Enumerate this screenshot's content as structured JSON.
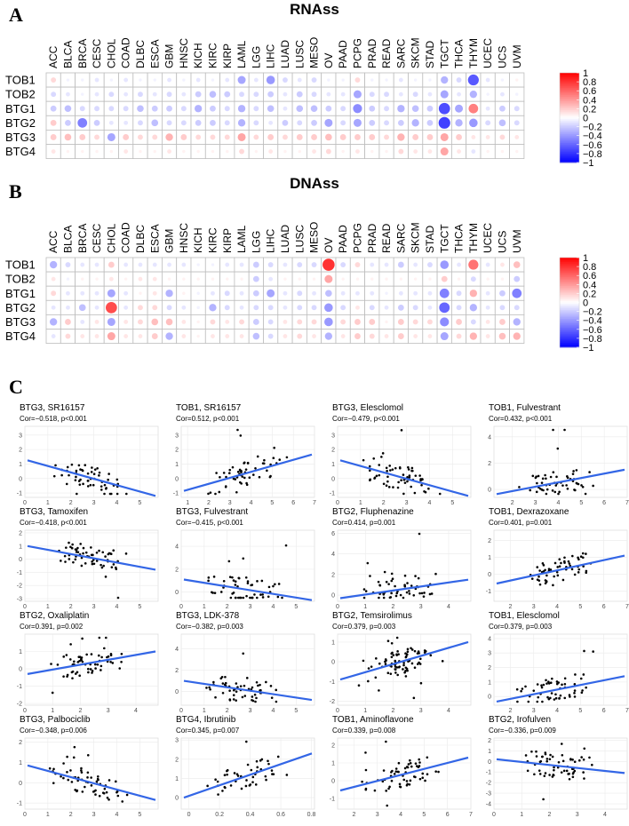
{
  "panels": {
    "A": {
      "letter": "A",
      "title": "RNAss"
    },
    "B": {
      "letter": "B",
      "title": "DNAss"
    },
    "C": {
      "letter": "C"
    }
  },
  "colorbar": {
    "labels": [
      "1",
      "0.8",
      "0.6",
      "0.4",
      "0.2",
      "0",
      "−0.2",
      "−0.4",
      "−0.6",
      "−0.8",
      "−1"
    ]
  },
  "chart_data": [
    {
      "type": "heatmap",
      "title": "RNAss",
      "columns": [
        "ACC",
        "BLCA",
        "BRCA",
        "CESC",
        "CHOL",
        "COAD",
        "DLBC",
        "ESCA",
        "GBM",
        "HNSC",
        "KICH",
        "KIRC",
        "KIRP",
        "LAML",
        "LGG",
        "LIHC",
        "LUAD",
        "LUSC",
        "MESO",
        "OV",
        "PAAD",
        "PCPG",
        "PRAD",
        "READ",
        "SARC",
        "SKCM",
        "STAD",
        "TGCT",
        "THCA",
        "THYM",
        "UCEC",
        "UCS",
        "UVM"
      ],
      "rows": [
        "TOB1",
        "TOB2",
        "BTG1",
        "BTG2",
        "BTG3",
        "BTG4"
      ],
      "values": [
        [
          0.15,
          -0.05,
          -0.05,
          -0.1,
          -0.05,
          -0.1,
          -0.05,
          -0.05,
          -0.1,
          -0.05,
          -0.1,
          -0.05,
          -0.1,
          -0.35,
          -0.1,
          -0.4,
          -0.15,
          -0.1,
          -0.15,
          -0.05,
          -0.05,
          0.15,
          -0.05,
          -0.05,
          -0.1,
          -0.05,
          -0.05,
          -0.3,
          -0.15,
          -0.65,
          -0.1,
          -0.05,
          0.05
        ],
        [
          -0.15,
          -0.1,
          -0.05,
          -0.1,
          -0.15,
          -0.1,
          -0.15,
          -0.1,
          -0.15,
          -0.1,
          -0.2,
          -0.25,
          -0.2,
          -0.15,
          -0.15,
          -0.2,
          -0.1,
          -0.2,
          -0.15,
          -0.1,
          -0.1,
          -0.35,
          -0.15,
          -0.15,
          -0.1,
          -0.15,
          -0.1,
          -0.35,
          -0.1,
          -0.3,
          -0.05,
          -0.1,
          -0.05
        ],
        [
          -0.2,
          -0.25,
          -0.15,
          -0.15,
          -0.15,
          -0.15,
          -0.25,
          -0.2,
          -0.2,
          -0.15,
          -0.3,
          -0.2,
          -0.15,
          -0.3,
          -0.15,
          -0.25,
          -0.1,
          -0.25,
          -0.25,
          -0.2,
          -0.15,
          -0.45,
          -0.2,
          -0.15,
          -0.3,
          -0.25,
          -0.2,
          -0.7,
          -0.35,
          0.5,
          -0.1,
          -0.2,
          -0.15
        ],
        [
          0.2,
          -0.2,
          -0.5,
          -0.2,
          -0.1,
          -0.1,
          -0.15,
          -0.25,
          -0.15,
          -0.15,
          -0.2,
          -0.2,
          -0.15,
          -0.3,
          -0.15,
          -0.1,
          -0.2,
          -0.15,
          -0.2,
          -0.35,
          -0.15,
          -0.35,
          -0.2,
          -0.15,
          -0.2,
          -0.3,
          -0.2,
          -0.75,
          -0.3,
          -0.4,
          -0.15,
          -0.25,
          -0.15
        ],
        [
          0.2,
          0.25,
          0.2,
          0.15,
          -0.35,
          0.2,
          0.15,
          0.15,
          0.3,
          0.2,
          0.15,
          0.15,
          0.15,
          0.35,
          0.15,
          0.2,
          0.15,
          0.2,
          0.2,
          0.25,
          0.2,
          0.2,
          0.2,
          0.15,
          0.3,
          0.2,
          0.2,
          0.35,
          0.2,
          0.1,
          0.1,
          0.15,
          0.1
        ],
        [
          0.1,
          0.05,
          0.05,
          0.05,
          0.05,
          0.1,
          0.05,
          0.05,
          0.1,
          0.05,
          0.05,
          0.05,
          0.05,
          0.15,
          0.05,
          0.1,
          0.05,
          0.05,
          0.1,
          0.15,
          0.05,
          0.1,
          0.05,
          0.05,
          0.15,
          0.1,
          0.1,
          0.35,
          0.1,
          -0.1,
          0.05,
          0.05,
          0.05
        ]
      ],
      "range": [
        -1,
        1
      ]
    },
    {
      "type": "heatmap",
      "title": "DNAss",
      "columns": [
        "ACC",
        "BLCA",
        "BRCA",
        "CESC",
        "CHOL",
        "COAD",
        "DLBC",
        "ESCA",
        "GBM",
        "HNSC",
        "KICH",
        "KIRC",
        "KIRP",
        "LAML",
        "LGG",
        "LIHC",
        "LUAD",
        "LUSC",
        "MESO",
        "OV",
        "PAAD",
        "PCPG",
        "PRAD",
        "READ",
        "SARC",
        "SKCM",
        "STAD",
        "TGCT",
        "THCA",
        "THYM",
        "UCEC",
        "UCS",
        "UVM"
      ],
      "rows": [
        "TOB1",
        "TOB2",
        "BTG1",
        "BTG2",
        "BTG3",
        "BTG4"
      ],
      "values": [
        [
          -0.3,
          -0.15,
          -0.1,
          -0.1,
          0.2,
          -0.1,
          -0.1,
          -0.1,
          -0.1,
          -0.1,
          -0.05,
          -0.05,
          -0.1,
          -0.1,
          -0.2,
          -0.15,
          -0.1,
          -0.15,
          -0.15,
          0.8,
          -0.15,
          0.15,
          -0.1,
          -0.1,
          -0.2,
          -0.1,
          -0.15,
          -0.4,
          -0.1,
          0.55,
          -0.1,
          0.1,
          0.25
        ],
        [
          0.1,
          -0.05,
          0.05,
          0.05,
          0.1,
          0.05,
          0.1,
          0.1,
          0.05,
          0.05,
          0.05,
          0.05,
          0.05,
          0.05,
          -0.2,
          -0.1,
          0.05,
          0.05,
          0.05,
          0.35,
          0.05,
          0.05,
          0.05,
          0.05,
          0.05,
          0.05,
          0.05,
          0.2,
          0.05,
          -0.15,
          0.05,
          0.05,
          -0.2
        ],
        [
          0.15,
          -0.1,
          -0.1,
          -0.1,
          -0.35,
          -0.1,
          0.05,
          0.1,
          -0.3,
          0.05,
          -0.05,
          -0.1,
          -0.15,
          -0.1,
          -0.2,
          -0.35,
          -0.1,
          -0.15,
          -0.1,
          -0.25,
          -0.1,
          -0.1,
          -0.1,
          -0.05,
          -0.1,
          -0.1,
          -0.1,
          -0.5,
          -0.15,
          0.3,
          -0.1,
          -0.2,
          -0.5
        ],
        [
          -0.1,
          -0.1,
          -0.25,
          -0.1,
          0.7,
          -0.1,
          0.15,
          0.15,
          -0.15,
          -0.1,
          -0.05,
          -0.3,
          -0.15,
          -0.1,
          -0.15,
          -0.15,
          -0.1,
          -0.15,
          -0.15,
          -0.4,
          -0.15,
          0.1,
          -0.15,
          -0.1,
          -0.2,
          -0.15,
          -0.1,
          -0.6,
          -0.15,
          -0.3,
          -0.1,
          -0.15,
          -0.15
        ],
        [
          -0.3,
          0.2,
          -0.1,
          0.1,
          -0.35,
          0.1,
          0.15,
          0.25,
          0.25,
          0.1,
          0.05,
          0.15,
          0.1,
          0.15,
          -0.2,
          -0.15,
          0.1,
          0.15,
          0.15,
          -0.4,
          0.15,
          0.2,
          0.2,
          0.05,
          0.2,
          0.15,
          0.15,
          -0.45,
          0.2,
          -0.15,
          0.1,
          0.2,
          -0.3
        ],
        [
          -0.1,
          0.15,
          0.1,
          0.1,
          0.35,
          0.1,
          0.1,
          0.2,
          -0.3,
          0.1,
          0.05,
          0.1,
          0.1,
          0.1,
          -0.25,
          -0.15,
          0.1,
          0.15,
          0.1,
          -0.3,
          0.1,
          0.2,
          0.15,
          0.1,
          0.2,
          0.1,
          0.1,
          -0.35,
          0.15,
          0.3,
          0.1,
          0.25,
          0.3
        ]
      ],
      "range": [
        -1,
        1
      ]
    },
    {
      "type": "scatter",
      "panels": [
        {
          "title": "BTG3, SR16157",
          "subtitle": "Cor=−0.518, p<0.001",
          "xlim": [
            0,
            5.8
          ],
          "ylim": [
            -1.3,
            3.6
          ],
          "xticks": [
            0,
            1,
            2,
            3,
            4,
            5
          ],
          "yticks": [
            -1,
            0,
            1,
            2,
            3
          ],
          "n": 55,
          "line": [
            1.25,
            -1.2
          ],
          "seed": 1
        },
        {
          "title": "TOB1, SR16157",
          "subtitle": "Cor=0.512, p<0.001",
          "xlim": [
            0.7,
            7
          ],
          "ylim": [
            -1.3,
            3.6
          ],
          "xticks": [
            1,
            2,
            3,
            4,
            5,
            6,
            7
          ],
          "yticks": [
            -1,
            0,
            1,
            2,
            3
          ],
          "n": 55,
          "line": [
            -0.85,
            1.65
          ],
          "seed": 2
        },
        {
          "title": "BTG3, Elesclomol",
          "subtitle": "Cor=−0.479, p<0.001",
          "xlim": [
            0,
            5.8
          ],
          "ylim": [
            -1.3,
            3.6
          ],
          "xticks": [
            0,
            1,
            2,
            3,
            4,
            5
          ],
          "yticks": [
            -1,
            0,
            1,
            2,
            3
          ],
          "n": 60,
          "line": [
            1.25,
            -1.2
          ],
          "seed": 3
        },
        {
          "title": "TOB1, Fulvestrant",
          "subtitle": "Cor=0.432, p<0.001",
          "xlim": [
            1.2,
            7
          ],
          "ylim": [
            -0.6,
            4.8
          ],
          "xticks": [
            2,
            3,
            4,
            5,
            6,
            7
          ],
          "yticks": [
            0,
            2,
            4
          ],
          "n": 55,
          "line": [
            -0.35,
            1.5
          ],
          "seed": 4
        },
        {
          "title": "BTG3, Tamoxifen",
          "subtitle": "Cor=−0.418, p<0.001",
          "xlim": [
            0,
            5.8
          ],
          "ylim": [
            -3.2,
            2.2
          ],
          "xticks": [
            0,
            1,
            2,
            3,
            4,
            5
          ],
          "yticks": [
            -3,
            -2,
            -1,
            0,
            1,
            2
          ],
          "n": 60,
          "line": [
            1.0,
            -0.8
          ],
          "seed": 5
        },
        {
          "title": "BTG3, Fulvestrant",
          "subtitle": "Cor=−0.415, p<0.001",
          "xlim": [
            0,
            5.8
          ],
          "ylim": [
            -0.8,
            5.4
          ],
          "xticks": [
            0,
            1,
            2,
            3,
            4,
            5
          ],
          "yticks": [
            0,
            2,
            4
          ],
          "n": 55,
          "line": [
            1.1,
            -0.7
          ],
          "seed": 6
        },
        {
          "title": "BTG2, Fluphenazine",
          "subtitle": "Cor=0.414, p=0.001",
          "xlim": [
            0,
            4.8
          ],
          "ylim": [
            -0.6,
            6.3
          ],
          "xticks": [
            0,
            1,
            2,
            3,
            4
          ],
          "yticks": [
            0,
            2,
            4,
            6
          ],
          "n": 55,
          "line": [
            -0.3,
            1.5
          ],
          "seed": 7
        },
        {
          "title": "TOB1, Dexrazoxane",
          "subtitle": "Cor=0.401, p=0.001",
          "xlim": [
            1.3,
            7
          ],
          "ylim": [
            -1.6,
            2.6
          ],
          "xticks": [
            2,
            3,
            4,
            5,
            6,
            7
          ],
          "yticks": [
            -1,
            0,
            1,
            2
          ],
          "n": 55,
          "line": [
            -0.55,
            1.1
          ],
          "seed": 8
        },
        {
          "title": "BTG2, Oxaliplatin",
          "subtitle": "Cor=0.391, p=0.002",
          "xlim": [
            0,
            4.8
          ],
          "ylim": [
            -2.1,
            2.0
          ],
          "xticks": [
            0,
            1,
            2,
            3,
            4
          ],
          "yticks": [
            -2,
            -1,
            0,
            1
          ],
          "n": 60,
          "line": [
            -0.3,
            1.0
          ],
          "seed": 9
        },
        {
          "title": "BTG3, LDK-378",
          "subtitle": "Cor=−0.382, p=0.003",
          "xlim": [
            0,
            5.8
          ],
          "ylim": [
            -1.3,
            5.4
          ],
          "xticks": [
            0,
            1,
            2,
            3,
            4,
            5
          ],
          "yticks": [
            0,
            2,
            4
          ],
          "n": 55,
          "line": [
            1.0,
            -0.8
          ],
          "seed": 10
        },
        {
          "title": "BTG2, Temsirolimus",
          "subtitle": "Cor=0.379, p=0.003",
          "xlim": [
            0,
            4.8
          ],
          "ylim": [
            -2.2,
            1.4
          ],
          "xticks": [
            0,
            1,
            2,
            3,
            4
          ],
          "yticks": [
            -2,
            -1,
            0,
            1
          ],
          "n": 80,
          "line": [
            -0.9,
            1.0
          ],
          "seed": 11
        },
        {
          "title": "TOB1, Elesclomol",
          "subtitle": "Cor=0.379, p=0.003",
          "xlim": [
            1.3,
            7
          ],
          "ylim": [
            -0.6,
            4.3
          ],
          "xticks": [
            2,
            3,
            4,
            5,
            6,
            7
          ],
          "yticks": [
            0,
            1,
            2,
            3,
            4
          ],
          "n": 55,
          "line": [
            -0.35,
            1.4
          ],
          "seed": 12
        },
        {
          "title": "BTG3, Palbociclib",
          "subtitle": "Cor=−0.348, p=0.006",
          "xlim": [
            0,
            5.8
          ],
          "ylim": [
            -1.3,
            2.2
          ],
          "xticks": [
            0,
            1,
            2,
            3,
            4,
            5
          ],
          "yticks": [
            -1,
            0,
            1,
            2
          ],
          "n": 60,
          "line": [
            0.85,
            -0.85
          ],
          "seed": 13
        },
        {
          "title": "BTG4, Ibrutinib",
          "subtitle": "Cor=0.345, p=0.007",
          "xlim": [
            -0.05,
            0.82
          ],
          "ylim": [
            -0.6,
            3.1
          ],
          "xticks": [
            0,
            0.2,
            0.4,
            0.6,
            0.8
          ],
          "yticks": [
            0,
            1,
            2,
            3
          ],
          "n": 45,
          "line": [
            0.0,
            2.3
          ],
          "seed": 14
        },
        {
          "title": "TOB1, Aminoflavone",
          "subtitle": "Cor=0.339, p=0.008",
          "xlim": [
            1.3,
            7
          ],
          "ylim": [
            -1.6,
            2.4
          ],
          "xticks": [
            2,
            3,
            4,
            5,
            6,
            7
          ],
          "yticks": [
            -1,
            0,
            1,
            2
          ],
          "n": 60,
          "line": [
            -0.55,
            1.3
          ],
          "seed": 15
        },
        {
          "title": "BTG2, Irofulven",
          "subtitle": "Cor=−0.336, p=0.009",
          "xlim": [
            0,
            4.8
          ],
          "ylim": [
            -4.5,
            2.2
          ],
          "xticks": [
            0,
            1,
            2,
            3,
            4
          ],
          "yticks": [
            -4,
            -3,
            -2,
            -1,
            0,
            1,
            2
          ],
          "n": 60,
          "line": [
            0.2,
            -1.1
          ],
          "seed": 16
        }
      ]
    }
  ]
}
